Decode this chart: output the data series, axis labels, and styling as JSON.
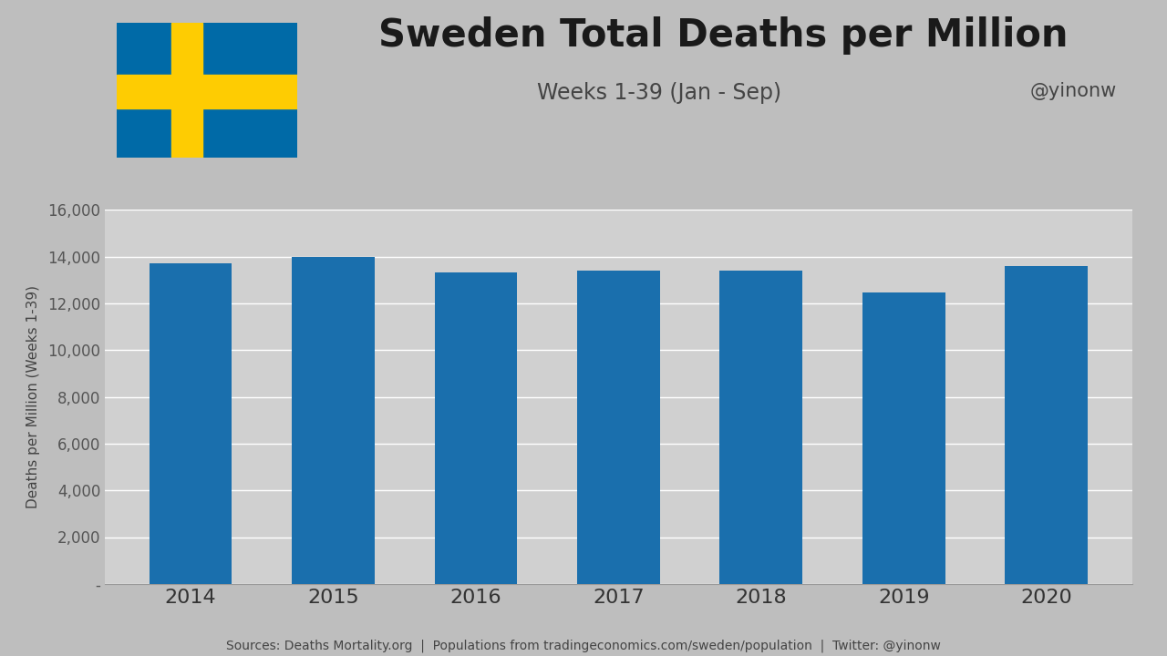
{
  "years": [
    "2014",
    "2015",
    "2016",
    "2017",
    "2018",
    "2019",
    "2020"
  ],
  "values": [
    13700,
    13970,
    13330,
    13390,
    13390,
    12480,
    13590
  ],
  "bar_color": "#1a6fad",
  "title": "Sweden Total Deaths per Million",
  "subtitle": "Weeks 1-39 (Jan - Sep)",
  "handle": "@yinonw",
  "ylabel": "Deaths per Million (Weeks 1-39)",
  "footer": "Sources: Deaths Mortality.org  |  Populations from tradingeconomics.com/sweden/population  |  Twitter: @yinonw",
  "ylim": [
    0,
    16000
  ],
  "yticks": [
    0,
    2000,
    4000,
    6000,
    8000,
    10000,
    12000,
    14000,
    16000
  ],
  "bg_color_outer": "#bebebe",
  "bg_color_inner": "#d0d0d0",
  "title_fontsize": 30,
  "subtitle_fontsize": 17,
  "handle_fontsize": 15,
  "ylabel_fontsize": 11,
  "xtick_fontsize": 16,
  "ytick_fontsize": 12,
  "footer_fontsize": 10,
  "sweden_flag_blue": "#006AA7",
  "sweden_flag_yellow": "#FECC02"
}
